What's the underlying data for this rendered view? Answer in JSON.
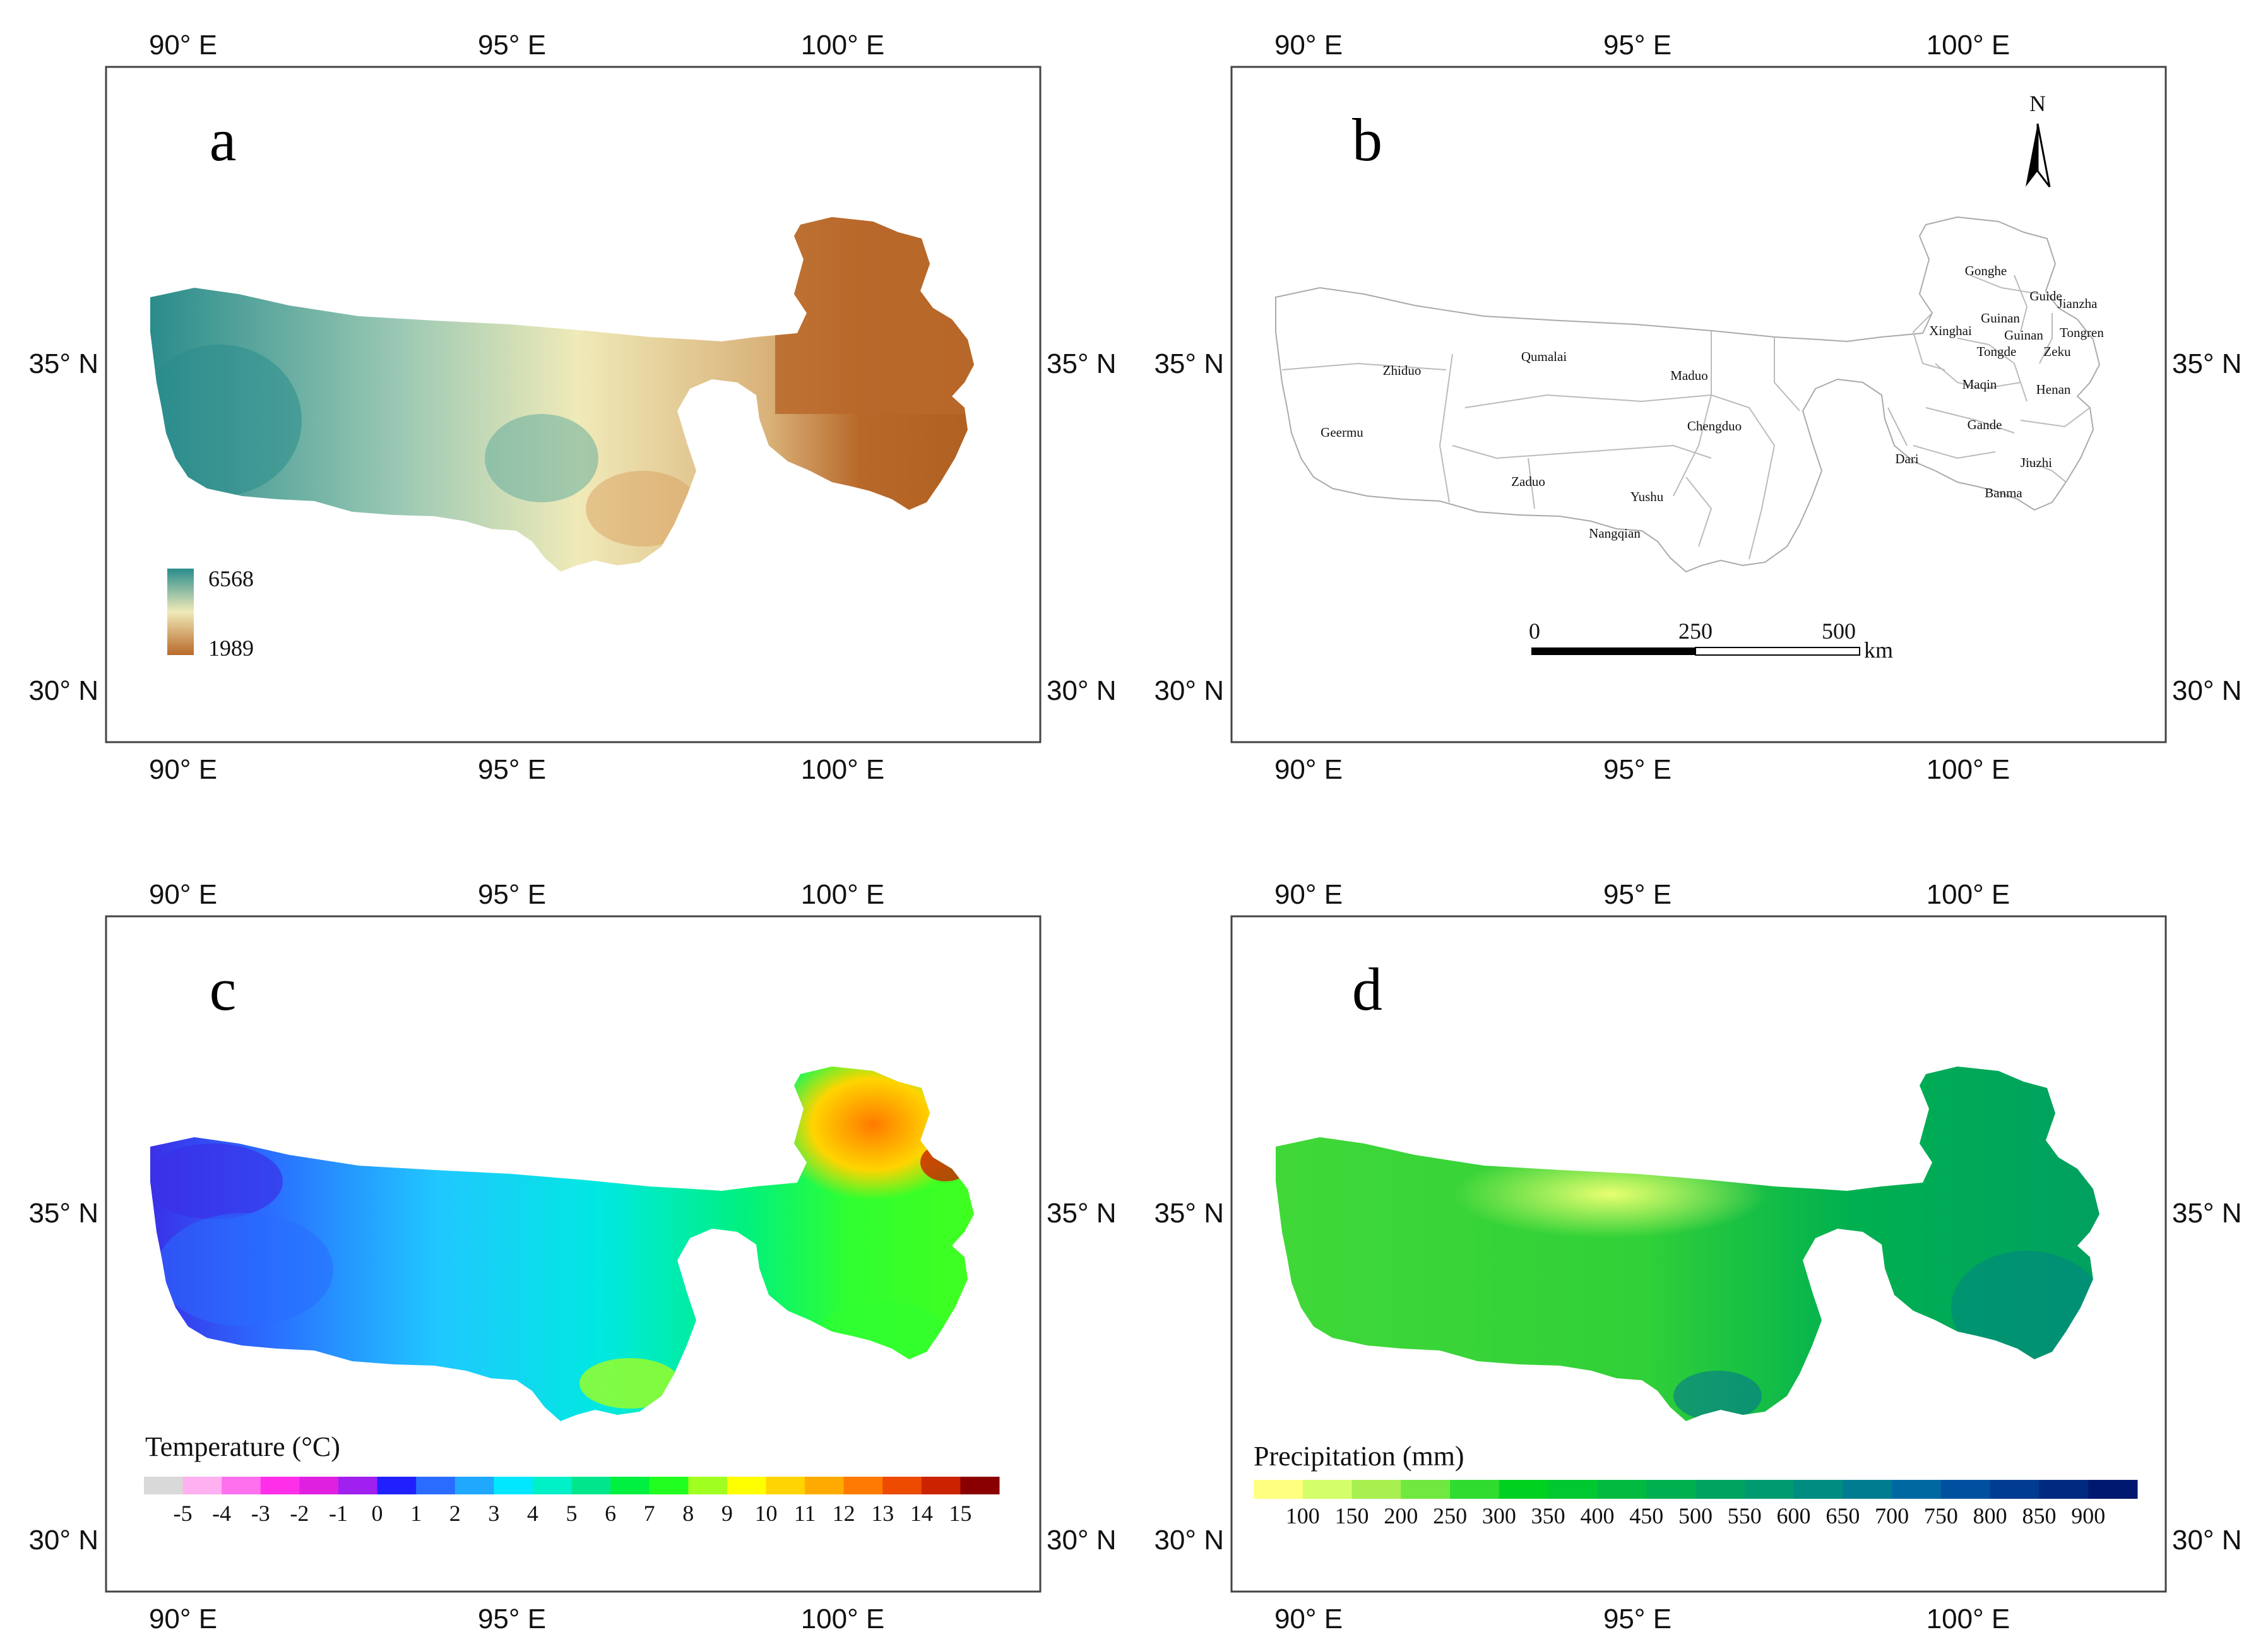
{
  "axes": {
    "lon_ticks": [
      "90° E",
      "95° E",
      "100° E"
    ],
    "lat_ticks": [
      "35° N",
      "30° N"
    ]
  },
  "panels": {
    "a": {
      "label": "a",
      "legend_max": "6568",
      "legend_min": "1989",
      "colors": [
        "#2a8c8c",
        "#f0eab8",
        "#b8692a"
      ]
    },
    "b": {
      "label": "b",
      "north": "N",
      "scale_labels": [
        "0",
        "250",
        "500"
      ],
      "scale_unit": "km",
      "counties": [
        "Gonghe",
        "Guide",
        "Jianzha",
        "Guinan",
        "Xinghai",
        "Guinan",
        "Tongren",
        "Tongde",
        "Zeku",
        "Zhiduo",
        "Qumalai",
        "Maduo",
        "Maqin",
        "Henan",
        "Geermu",
        "Chengduo",
        "Gande",
        "Dari",
        "Jiuzhi",
        "Zaduo",
        "Yushu",
        "Banma",
        "Nangqian"
      ]
    },
    "c": {
      "label": "c",
      "legend_title": "Temperature (°C)",
      "legend_labels": [
        "-5",
        "-4",
        "-3",
        "-2",
        "-1",
        "0",
        "1",
        "2",
        "3",
        "4",
        "5",
        "6",
        "7",
        "8",
        "9",
        "10",
        "11",
        "12",
        "13",
        "14",
        "15"
      ],
      "colors": [
        "#d9d9d9",
        "#ffb0f0",
        "#ff70ee",
        "#ff2ee8",
        "#e020e0",
        "#a020f0",
        "#2020ff",
        "#2a6cff",
        "#20a8ff",
        "#00e8ff",
        "#00f0c8",
        "#00e68c",
        "#00f040",
        "#20ff20",
        "#a0ff20",
        "#ffff00",
        "#ffd400",
        "#ffaa00",
        "#ff7a00",
        "#ee4a00",
        "#cc2200",
        "#8a0000"
      ]
    },
    "d": {
      "label": "d",
      "legend_title": "Precipitation (mm)",
      "legend_labels": [
        "100",
        "150",
        "200",
        "250",
        "300",
        "350",
        "400",
        "450",
        "500",
        "550",
        "600",
        "650",
        "700",
        "750",
        "800",
        "850",
        "900"
      ],
      "colors": [
        "#ffff80",
        "#d4ff6a",
        "#a8f050",
        "#70e840",
        "#30dc30",
        "#00d020",
        "#00c830",
        "#00bb40",
        "#00b050",
        "#00a460",
        "#009a70",
        "#008c80",
        "#007c90",
        "#0068a0",
        "#0050a0",
        "#003c90",
        "#002a80",
        "#001870"
      ]
    }
  }
}
